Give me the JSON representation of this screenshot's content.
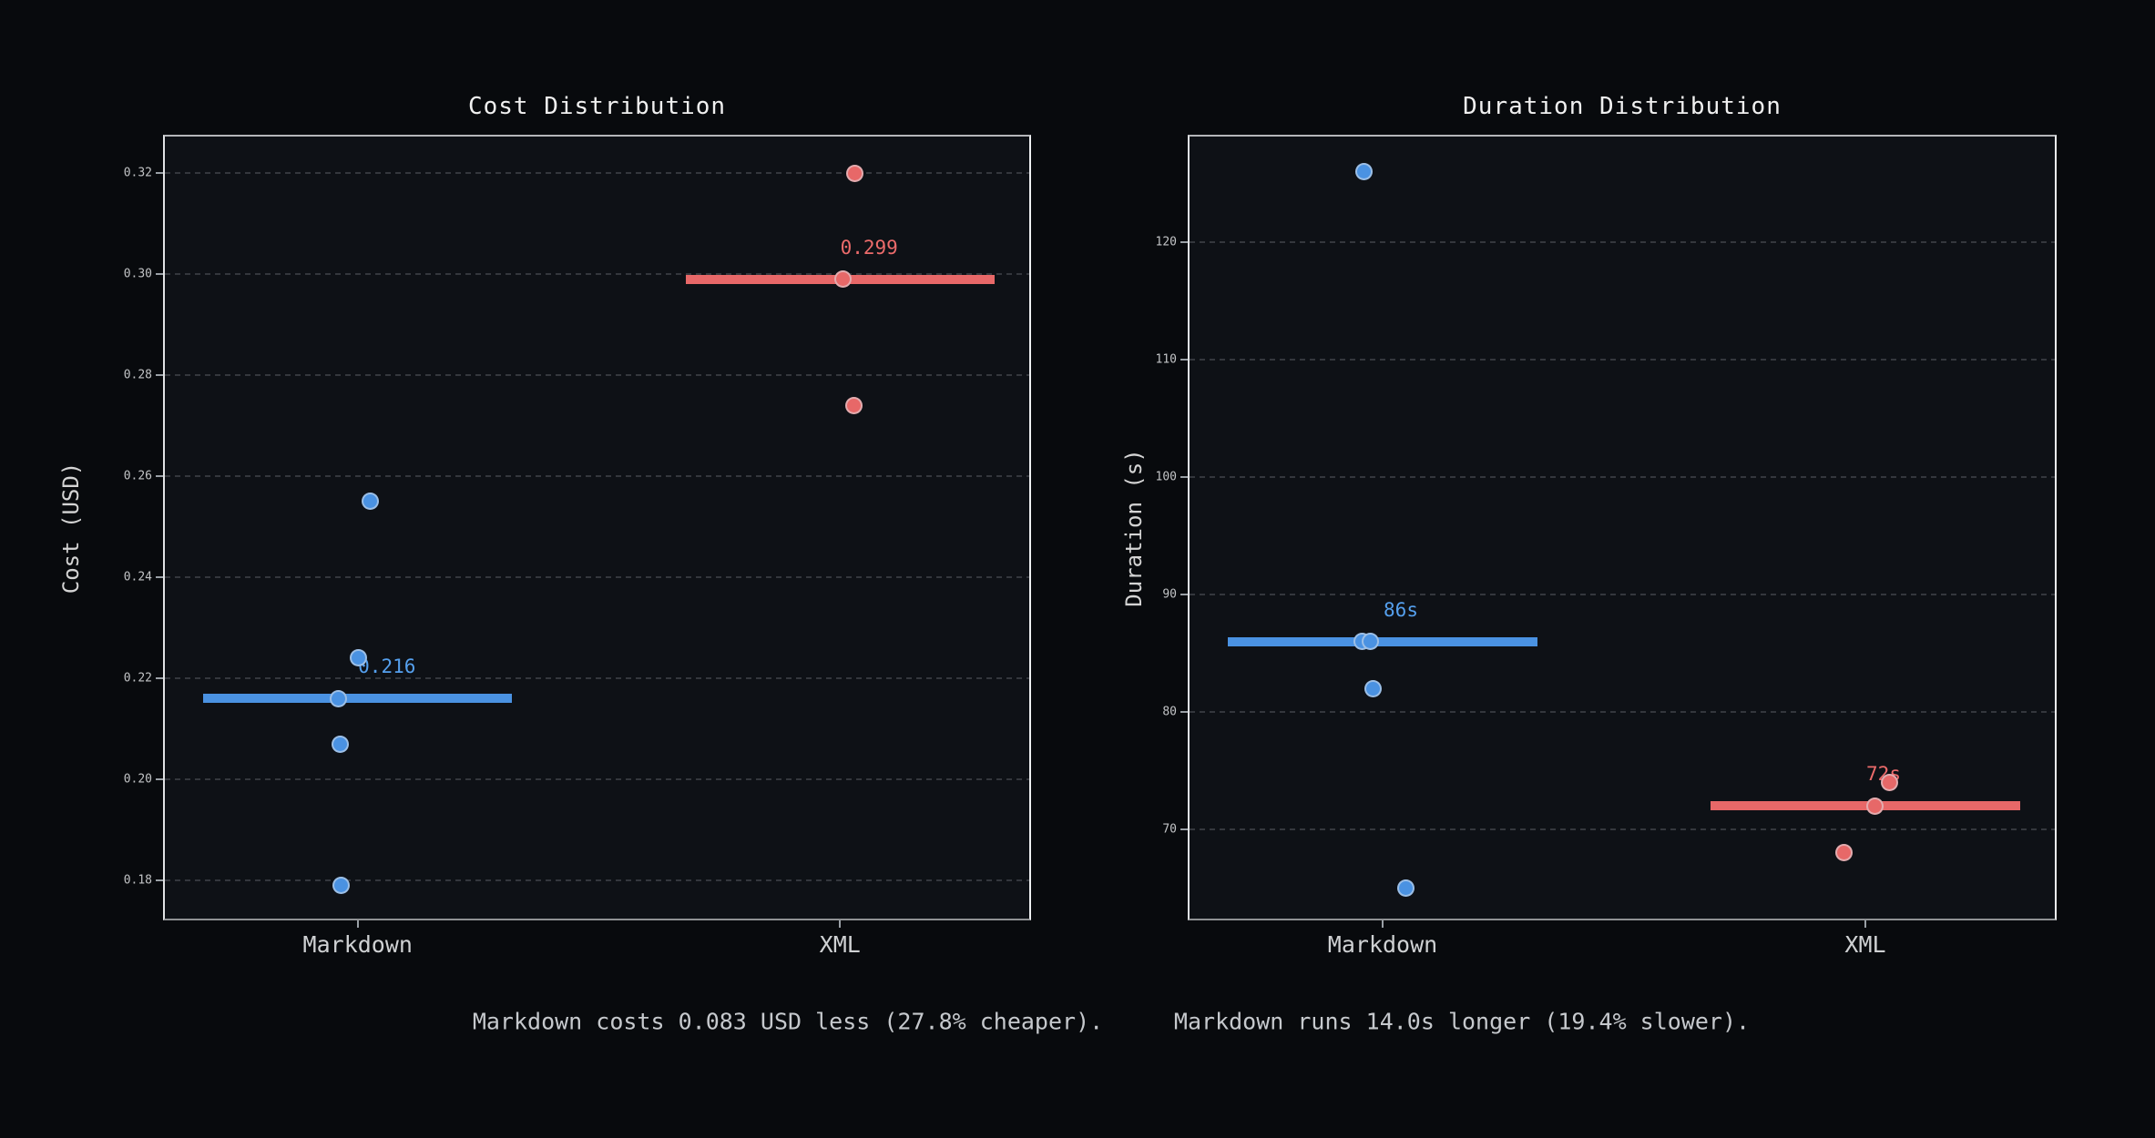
{
  "figure": {
    "background": "#080a0d",
    "axes_background": "#0e1116",
    "blue": "#4a92e2",
    "red": "#e76868",
    "blue_label": "#55a0ee",
    "red_label": "#ec6b6b",
    "title_color": "#f0f0f0",
    "tick_color": "#c2c4c6",
    "grid_color": "#34373d"
  },
  "annotation": {
    "cost_note": "Markdown costs 0.083 USD less (27.8% cheaper).",
    "duration_note": "Markdown runs 14.0s longer (19.4% slower)."
  },
  "chart_data": [
    {
      "type": "scatter",
      "title": "Cost Distribution",
      "ylabel": "Cost (USD)",
      "xlabel": "",
      "categories": [
        "Markdown",
        "XML"
      ],
      "ylim": [
        0.1717,
        0.3273
      ],
      "xlim_category_units": [
        -0.4,
        1.4
      ],
      "yticks": [
        "0.18",
        "0.20",
        "0.22",
        "0.24",
        "0.26",
        "0.28",
        "0.30",
        "0.32"
      ],
      "grid": "horizontal-dashed",
      "legend": "none",
      "series": [
        {
          "name": "Markdown",
          "color_key": "blue",
          "median": 0.216,
          "median_label": "0.216",
          "points": [
            {
              "value": 0.255,
              "jitter": 0.026
            },
            {
              "value": 0.224,
              "jitter": 0.002
            },
            {
              "value": 0.216,
              "jitter": -0.04
            },
            {
              "value": 0.207,
              "jitter": -0.036
            },
            {
              "value": 0.179,
              "jitter": -0.034
            }
          ]
        },
        {
          "name": "XML",
          "color_key": "red",
          "median": 0.299,
          "median_label": "0.299",
          "points": [
            {
              "value": 0.32,
              "jitter": 0.03
            },
            {
              "value": 0.299,
              "jitter": 0.006
            },
            {
              "value": 0.274,
              "jitter": 0.028
            }
          ]
        }
      ]
    },
    {
      "type": "scatter",
      "title": "Duration Distribution",
      "ylabel": "Duration (s)",
      "xlabel": "",
      "categories": [
        "Markdown",
        "XML"
      ],
      "ylim": [
        62.1,
        129.0
      ],
      "xlim_category_units": [
        -0.4,
        1.4
      ],
      "yticks": [
        "70",
        "80",
        "90",
        "100",
        "110",
        "120"
      ],
      "grid": "horizontal-dashed",
      "legend": "none",
      "series": [
        {
          "name": "Markdown",
          "color_key": "blue",
          "median": 86,
          "median_label": "86s",
          "points": [
            {
              "value": 126,
              "jitter": -0.038
            },
            {
              "value": 86,
              "jitter": -0.043
            },
            {
              "value": 86,
              "jitter": -0.025
            },
            {
              "value": 82,
              "jitter": -0.02
            },
            {
              "value": 65,
              "jitter": 0.049
            }
          ]
        },
        {
          "name": "XML",
          "color_key": "red",
          "median": 72,
          "median_label": "72s",
          "points": [
            {
              "value": 74,
              "jitter": 0.05
            },
            {
              "value": 72,
              "jitter": 0.02
            },
            {
              "value": 68,
              "jitter": -0.045
            }
          ]
        }
      ]
    }
  ]
}
